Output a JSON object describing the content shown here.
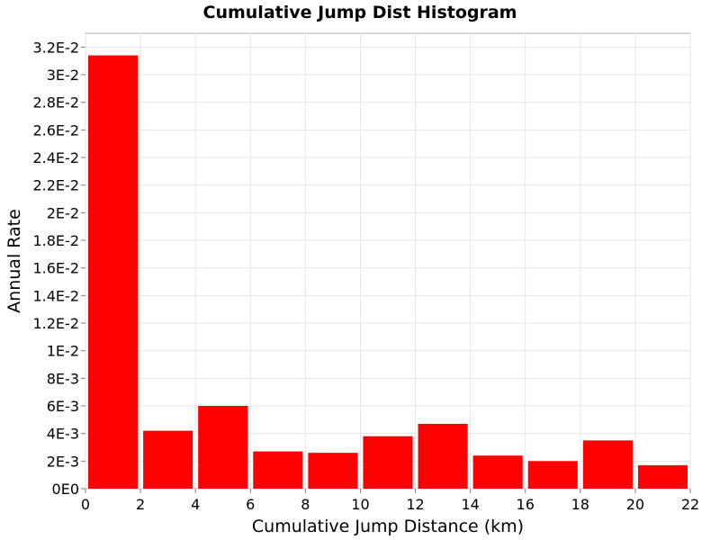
{
  "chart_data": {
    "type": "bar",
    "title": "Cumulative Jump Dist Histogram",
    "xlabel": "Cumulative Jump Distance (km)",
    "ylabel": "Annual Rate",
    "xlim": [
      0,
      22
    ],
    "ylim": [
      0,
      0.033
    ],
    "grid": true,
    "bar_color": "#ff0000",
    "bin_width": 2,
    "x_ticks": [
      0,
      2,
      4,
      6,
      8,
      10,
      12,
      14,
      16,
      18,
      20,
      22
    ],
    "x_tick_labels": [
      "0",
      "2",
      "4",
      "6",
      "8",
      "10",
      "12",
      "14",
      "16",
      "18",
      "20",
      "22"
    ],
    "y_ticks": [
      0,
      0.002,
      0.004,
      0.006,
      0.008,
      0.01,
      0.012,
      0.014,
      0.016,
      0.018,
      0.02,
      0.022,
      0.024,
      0.026,
      0.028,
      0.03,
      0.032
    ],
    "y_tick_labels": [
      "0E0",
      "2E-3",
      "4E-3",
      "6E-3",
      "8E-3",
      "1E-2",
      "1.2E-2",
      "1.4E-2",
      "1.6E-2",
      "1.8E-2",
      "2E-2",
      "2.2E-2",
      "2.4E-2",
      "2.6E-2",
      "2.8E-2",
      "3E-2",
      "3.2E-2"
    ],
    "bin_centers": [
      1,
      3,
      5,
      7,
      9,
      11,
      13,
      15,
      17,
      19,
      21
    ],
    "values": [
      0.0314,
      0.0042,
      0.006,
      0.0027,
      0.0026,
      0.0038,
      0.0047,
      0.0024,
      0.002,
      0.0035,
      0.0017
    ]
  }
}
